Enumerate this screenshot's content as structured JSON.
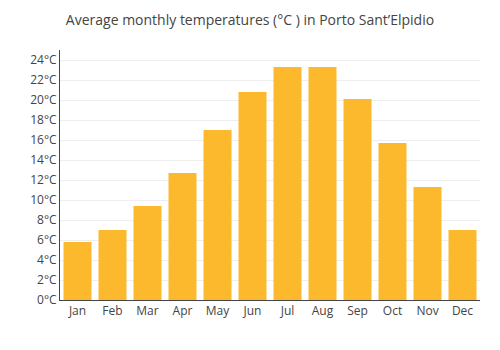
{
  "chart_data": {
    "type": "bar",
    "title": "Average monthly temperatures (°C ) in Porto Sant’Elpidio",
    "categories": [
      "Jan",
      "Feb",
      "Mar",
      "Apr",
      "May",
      "Jun",
      "Jul",
      "Aug",
      "Sep",
      "Oct",
      "Nov",
      "Dec"
    ],
    "values": [
      5.8,
      7.0,
      9.4,
      12.7,
      17.0,
      20.8,
      23.3,
      23.3,
      20.1,
      15.7,
      11.3,
      7.0
    ],
    "color": "#FDB92E",
    "ylim": [
      0,
      25
    ],
    "yticks": [
      {
        "value": 0,
        "label": "0°C"
      },
      {
        "value": 2,
        "label": "2°C"
      },
      {
        "value": 4,
        "label": "4°C"
      },
      {
        "value": 6,
        "label": "6°C"
      },
      {
        "value": 8,
        "label": "8°C"
      },
      {
        "value": 10,
        "label": "10°C"
      },
      {
        "value": 12,
        "label": "12°C"
      },
      {
        "value": 14,
        "label": "14°C"
      },
      {
        "value": 16,
        "label": "16°C"
      },
      {
        "value": 18,
        "label": "18°C"
      },
      {
        "value": 20,
        "label": "20°C"
      },
      {
        "value": 22,
        "label": "22°C"
      },
      {
        "value": 24,
        "label": "24°C"
      }
    ],
    "grid": true
  }
}
